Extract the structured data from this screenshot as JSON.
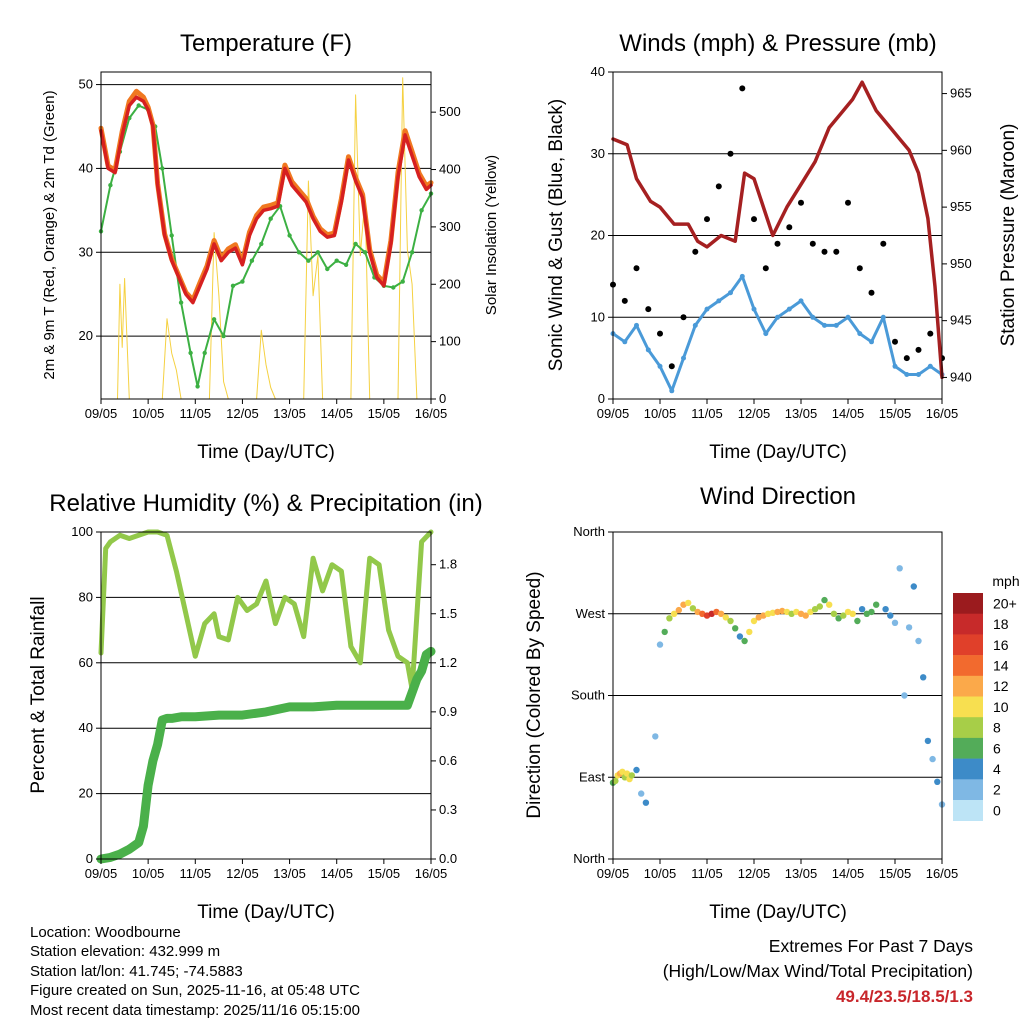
{
  "chart_data": [
    {
      "type": "line",
      "title": "Temperature (F)",
      "xlabel": "Time (Day/UTC)",
      "ylabel": "2m & 9m T (Red, Orange) & 2m Td (Green)",
      "ylabel_right": "Solar Insolation (Yellow)",
      "xticks": [
        "09/05",
        "10/05",
        "11/05",
        "12/05",
        "13/05",
        "14/05",
        "15/05",
        "16/05"
      ],
      "xlim": [
        0,
        7
      ],
      "ylim": [
        12.5,
        51.5
      ],
      "yticks": [
        20,
        30,
        40,
        50
      ],
      "ylim_right": [
        0,
        570
      ],
      "yticks_right": [
        0,
        100,
        200,
        300,
        400,
        500
      ],
      "series": [
        {
          "name": "2m T",
          "color": "#d62020",
          "x": [
            0,
            0.15,
            0.3,
            0.45,
            0.6,
            0.75,
            0.9,
            1.0,
            1.1,
            1.2,
            1.35,
            1.5,
            1.65,
            1.8,
            1.95,
            2.1,
            2.25,
            2.4,
            2.55,
            2.7,
            2.85,
            3.0,
            3.15,
            3.3,
            3.45,
            3.6,
            3.75,
            3.9,
            4.05,
            4.2,
            4.35,
            4.5,
            4.65,
            4.8,
            4.95,
            5.1,
            5.25,
            5.4,
            5.55,
            5.7,
            5.85,
            6.0,
            6.15,
            6.3,
            6.45,
            6.6,
            6.75,
            6.9,
            7.0
          ],
          "values": [
            44.5,
            40,
            39.5,
            44,
            47.5,
            48.5,
            48,
            47,
            45,
            38,
            32,
            29,
            27,
            25,
            24,
            26,
            28,
            31,
            29,
            30,
            30.5,
            28.5,
            32,
            34,
            35,
            35.2,
            35.5,
            40,
            38,
            37,
            36,
            34,
            32.5,
            31.8,
            32,
            36,
            41,
            38.5,
            36.5,
            30,
            27,
            26,
            31,
            39,
            44,
            41.5,
            39,
            37.5,
            38
          ]
        },
        {
          "name": "9m T",
          "color": "#f07820",
          "x": [
            0,
            0.15,
            0.3,
            0.45,
            0.6,
            0.75,
            0.9,
            1.0,
            1.1,
            1.2,
            1.35,
            1.5,
            1.65,
            1.8,
            1.95,
            2.1,
            2.25,
            2.4,
            2.55,
            2.7,
            2.85,
            3.0,
            3.15,
            3.3,
            3.45,
            3.6,
            3.75,
            3.9,
            4.05,
            4.2,
            4.35,
            4.5,
            4.65,
            4.8,
            4.95,
            5.1,
            5.25,
            5.4,
            5.55,
            5.7,
            5.85,
            6.0,
            6.15,
            6.3,
            6.45,
            6.6,
            6.75,
            6.9,
            7.0
          ],
          "values": [
            44.8,
            40.3,
            39.8,
            44.4,
            48,
            49.2,
            48.5,
            47.3,
            45.2,
            38.2,
            32.2,
            29.2,
            27.2,
            25.2,
            24.3,
            26.4,
            28.4,
            31.4,
            29.3,
            30.4,
            30.9,
            28.8,
            32.4,
            34.4,
            35.4,
            35.6,
            35.9,
            40.4,
            38.4,
            37.4,
            36.4,
            34.3,
            32.8,
            32.1,
            32.3,
            36.4,
            41.4,
            38.9,
            36.9,
            30.3,
            27.3,
            26.4,
            31.4,
            39.5,
            44.5,
            42,
            39.4,
            37.9,
            38.3
          ]
        },
        {
          "name": "2m Td",
          "color": "#3cb043",
          "x": [
            0,
            0.2,
            0.4,
            0.6,
            0.8,
            1.0,
            1.15,
            1.3,
            1.5,
            1.7,
            1.9,
            2.05,
            2.2,
            2.4,
            2.6,
            2.8,
            3.0,
            3.2,
            3.4,
            3.6,
            3.8,
            4.0,
            4.2,
            4.4,
            4.6,
            4.8,
            5.0,
            5.2,
            5.4,
            5.6,
            5.8,
            6.0,
            6.2,
            6.4,
            6.6,
            6.8,
            7.0
          ],
          "values": [
            32.5,
            38,
            42,
            46,
            47.5,
            47,
            45,
            40,
            32,
            24,
            18,
            14,
            18,
            22,
            20,
            26,
            26.5,
            29,
            31,
            34,
            35.5,
            32,
            30,
            29,
            30,
            28,
            29,
            28.5,
            31,
            30,
            27,
            26,
            25.8,
            26.5,
            30,
            35,
            37
          ]
        },
        {
          "name": "Solar Insolation",
          "color": "#f5d142",
          "axis": "right",
          "x": [
            0,
            0.35,
            0.4,
            0.45,
            0.5,
            0.6,
            1.3,
            1.4,
            1.5,
            1.6,
            1.7,
            2.3,
            2.4,
            2.5,
            2.6,
            2.7,
            3.3,
            3.4,
            3.5,
            3.6,
            3.7,
            4.3,
            4.4,
            4.5,
            4.6,
            4.7,
            5.3,
            5.4,
            5.5,
            5.6,
            5.7,
            6.3,
            6.4,
            6.5,
            6.6,
            6.7,
            7.0
          ],
          "values": [
            0,
            0,
            200,
            90,
            210,
            0,
            0,
            140,
            80,
            50,
            0,
            0,
            290,
            180,
            30,
            0,
            0,
            120,
            60,
            20,
            0,
            0,
            380,
            180,
            250,
            0,
            0,
            530,
            250,
            350,
            0,
            0,
            560,
            260,
            200,
            0,
            0
          ]
        }
      ]
    },
    {
      "type": "scatter",
      "title": "Winds (mph) & Pressure (mb)",
      "xlabel": "Time (Day/UTC)",
      "ylabel": "Sonic Wind & Gust (Blue, Black)",
      "ylabel_right": "Station Pressure (Maroon)",
      "xticks": [
        "09/05",
        "10/05",
        "11/05",
        "12/05",
        "13/05",
        "14/05",
        "15/05",
        "16/05"
      ],
      "xlim": [
        0,
        7
      ],
      "ylim": [
        0,
        40
      ],
      "yticks": [
        0,
        10,
        20,
        30,
        40
      ],
      "ylim_right": [
        938.1,
        966.9
      ],
      "yticks_right": [
        940,
        945,
        950,
        955,
        960,
        965
      ],
      "series": [
        {
          "name": "Sonic Wind",
          "color": "#4a9ad8",
          "x": [
            0,
            0.25,
            0.5,
            0.75,
            1.0,
            1.25,
            1.5,
            1.75,
            2.0,
            2.25,
            2.5,
            2.75,
            3.0,
            3.25,
            3.5,
            3.75,
            4.0,
            4.25,
            4.5,
            4.75,
            5.0,
            5.25,
            5.5,
            5.75,
            6.0,
            6.25,
            6.5,
            6.75,
            7.0
          ],
          "values": [
            8,
            7,
            9,
            6,
            4,
            1,
            5,
            9,
            11,
            12,
            13,
            15,
            11,
            8,
            10,
            11,
            12,
            10,
            9,
            9,
            10,
            8,
            7,
            10,
            4,
            3,
            3,
            4,
            3
          ]
        },
        {
          "name": "Gust",
          "color": "#000000",
          "x": [
            0,
            0.25,
            0.5,
            0.75,
            1.0,
            1.25,
            1.5,
            1.75,
            2.0,
            2.25,
            2.5,
            2.75,
            3.0,
            3.25,
            3.5,
            3.75,
            4.0,
            4.25,
            4.5,
            4.75,
            5.0,
            5.25,
            5.5,
            5.75,
            6.0,
            6.25,
            6.5,
            6.75,
            7.0
          ],
          "values": [
            14,
            12,
            16,
            11,
            8,
            4,
            10,
            18,
            22,
            26,
            30,
            38,
            22,
            16,
            19,
            21,
            24,
            19,
            18,
            18,
            24,
            16,
            13,
            19,
            7,
            5,
            6,
            8,
            5
          ]
        },
        {
          "name": "Station Pressure",
          "color": "#a52021",
          "axis": "right",
          "x": [
            0,
            0.3,
            0.5,
            0.8,
            1.0,
            1.3,
            1.6,
            1.8,
            2.0,
            2.3,
            2.6,
            2.8,
            3.0,
            3.4,
            3.7,
            4.0,
            4.3,
            4.6,
            4.9,
            5.1,
            5.3,
            5.6,
            5.9,
            6.1,
            6.3,
            6.5,
            6.7,
            6.85,
            7.0
          ],
          "values": [
            961,
            960.5,
            957.5,
            955.5,
            955,
            953.5,
            953.5,
            952,
            951.5,
            952.5,
            952,
            958,
            957.5,
            952.5,
            955,
            957,
            959,
            962,
            963.5,
            964.5,
            966,
            963.5,
            962,
            961,
            960,
            958,
            954,
            948,
            940
          ]
        }
      ]
    },
    {
      "type": "line",
      "title": "Relative Humidity (%) & Precipitation (in)",
      "xlabel": "Time (Day/UTC)",
      "ylabel": "Percent & Total Rainfall",
      "xticks": [
        "09/05",
        "10/05",
        "11/05",
        "12/05",
        "13/05",
        "14/05",
        "15/05",
        "16/05"
      ],
      "xlim": [
        0,
        7
      ],
      "ylim": [
        0,
        100
      ],
      "yticks": [
        0,
        20,
        40,
        60,
        80,
        100
      ],
      "ylim_right": [
        0,
        2
      ],
      "yticks_right": [
        "0.0",
        "0.3",
        "0.6",
        "0.9",
        "1.2",
        "1.5",
        "1.8"
      ],
      "series": [
        {
          "name": "Relative Humidity",
          "color": "#92c84a",
          "x": [
            0,
            0.1,
            0.2,
            0.4,
            0.6,
            0.8,
            1.0,
            1.2,
            1.4,
            1.6,
            1.8,
            2.0,
            2.2,
            2.4,
            2.5,
            2.7,
            2.9,
            3.1,
            3.3,
            3.5,
            3.7,
            3.9,
            4.1,
            4.3,
            4.5,
            4.7,
            4.9,
            5.1,
            5.3,
            5.5,
            5.7,
            5.9,
            6.1,
            6.3,
            6.5,
            6.6,
            6.8,
            7.0
          ],
          "values": [
            63,
            95,
            97,
            99,
            98,
            99,
            100,
            100,
            99,
            88,
            75,
            62,
            72,
            75,
            68,
            67,
            80,
            76,
            78,
            85,
            72,
            80,
            78,
            68,
            92,
            82,
            90,
            88,
            65,
            60,
            92,
            90,
            70,
            62,
            60,
            52,
            97,
            100
          ]
        },
        {
          "name": "Total Rainfall",
          "color": "#4ab04a",
          "axis": "right",
          "x": [
            0,
            0.2,
            0.4,
            0.6,
            0.8,
            0.9,
            1.0,
            1.1,
            1.2,
            1.3,
            1.4,
            1.5,
            1.7,
            2.0,
            2.5,
            3.0,
            3.5,
            4.0,
            4.5,
            5.0,
            5.5,
            6.0,
            6.5,
            6.7,
            6.8,
            6.9,
            7.0
          ],
          "values": [
            0,
            0.01,
            0.03,
            0.06,
            0.1,
            0.2,
            0.45,
            0.6,
            0.7,
            0.85,
            0.86,
            0.86,
            0.87,
            0.87,
            0.88,
            0.88,
            0.9,
            0.93,
            0.93,
            0.94,
            0.94,
            0.94,
            0.94,
            1.1,
            1.15,
            1.25,
            1.27
          ]
        }
      ]
    },
    {
      "type": "scatter",
      "title": "Wind Direction",
      "xlabel": "Time (Day/UTC)",
      "ylabel": "Direction (Colored By Speed)",
      "xticks": [
        "09/05",
        "10/05",
        "11/05",
        "12/05",
        "13/05",
        "14/05",
        "15/05",
        "16/05"
      ],
      "xlim": [
        0,
        7
      ],
      "ylim": [
        0,
        360
      ],
      "yticks": [
        "North",
        "East",
        "South",
        "West",
        "North"
      ],
      "colorbar": {
        "label": "mph",
        "levels": [
          "20+",
          "18",
          "16",
          "14",
          "12",
          "10",
          "8",
          "6",
          "4",
          "2",
          "0"
        ],
        "colors": [
          "#9b1b1e",
          "#c72a2a",
          "#e0402a",
          "#f26a2e",
          "#fba94a",
          "#f7df50",
          "#a7ce48",
          "#53ac59",
          "#3d8bc8",
          "#7fb8e4",
          "#bde4f6"
        ]
      },
      "series": [
        {
          "name": "Wind Direction",
          "x": [
            0.0,
            0.05,
            0.1,
            0.15,
            0.2,
            0.25,
            0.3,
            0.35,
            0.4,
            0.5,
            0.6,
            0.7,
            0.9,
            1.0,
            1.1,
            1.2,
            1.3,
            1.4,
            1.5,
            1.6,
            1.7,
            1.8,
            1.9,
            2.0,
            2.1,
            2.2,
            2.3,
            2.4,
            2.5,
            2.6,
            2.7,
            2.8,
            2.9,
            3.0,
            3.1,
            3.2,
            3.3,
            3.4,
            3.5,
            3.6,
            3.7,
            3.8,
            3.9,
            4.0,
            4.1,
            4.2,
            4.3,
            4.4,
            4.5,
            4.6,
            4.7,
            4.8,
            4.9,
            5.0,
            5.1,
            5.2,
            5.3,
            5.4,
            5.5,
            5.6,
            5.8,
            5.9,
            6.0,
            6.1,
            6.2,
            6.3,
            6.4,
            6.5,
            6.6,
            6.7,
            6.8,
            6.9,
            7.0
          ],
          "direction": [
            84,
            86,
            92,
            94,
            96,
            90,
            94,
            88,
            92,
            98,
            72,
            62,
            135,
            236,
            250,
            265,
            270,
            274,
            280,
            282,
            276,
            272,
            270,
            268,
            270,
            272,
            270,
            266,
            262,
            254,
            245,
            240,
            250,
            262,
            266,
            268,
            270,
            271,
            272,
            273,
            272,
            270,
            272,
            270,
            268,
            272,
            275,
            278,
            285,
            280,
            270,
            265,
            268,
            272,
            270,
            262,
            275,
            270,
            272,
            280,
            275,
            268,
            260,
            320,
            180,
            255,
            300,
            240,
            200,
            130,
            110,
            85,
            60
          ],
          "speed": [
            6,
            8,
            10,
            12,
            9,
            7,
            10,
            9,
            8,
            4,
            2,
            3,
            2,
            1,
            5,
            8,
            10,
            12,
            11,
            9,
            8,
            12,
            14,
            16,
            18,
            14,
            12,
            10,
            8,
            5,
            3,
            5,
            9,
            10,
            12,
            11,
            10,
            9,
            12,
            11,
            10,
            8,
            10,
            12,
            11,
            9,
            8,
            7,
            6,
            10,
            8,
            6,
            8,
            10,
            9,
            6,
            4,
            5,
            6,
            5,
            4,
            3,
            2,
            1,
            2,
            1,
            3,
            2,
            4,
            3,
            2,
            3,
            2
          ]
        }
      ]
    }
  ],
  "info": {
    "location": "Location: Woodbourne",
    "elevation": "Station elevation: 432.999 m",
    "latlon": "Station lat/lon: 41.745; -74.5883",
    "created": "Figure created on Sun, 2025-11-16, at 05:48 UTC",
    "recent": "Most recent data timestamp: 2025/11/16 05:15:00"
  },
  "extremes": {
    "title": "Extremes For Past 7 Days",
    "subtitle": "(High/Low/Max Wind/Total Precipitation)",
    "values": "49.4/23.5/18.5/1.3",
    "value_color": "#c8262b"
  }
}
